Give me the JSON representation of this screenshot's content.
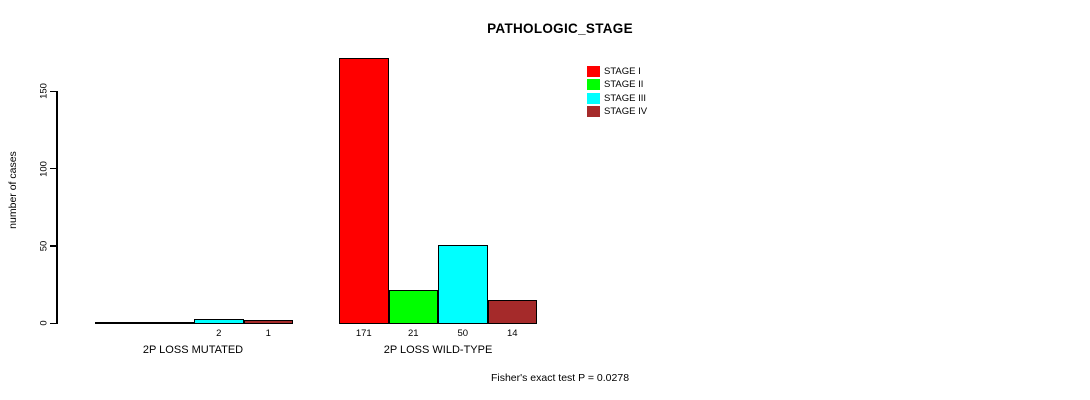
{
  "chart_data": {
    "type": "bar",
    "title": "PATHOLOGIC_STAGE",
    "ylabel": "number of cases",
    "xlabel": "",
    "ylim": [
      0,
      171
    ],
    "yticks": [
      0,
      50,
      100,
      150
    ],
    "grid": false,
    "legend_position": "top-right",
    "categories": [
      "2P LOSS MUTATED",
      "2P LOSS WILD-TYPE"
    ],
    "series": [
      {
        "name": "STAGE I",
        "color": "#ff0000",
        "values": [
          0,
          171
        ]
      },
      {
        "name": "STAGE II",
        "color": "#00ff00",
        "values": [
          0,
          21
        ]
      },
      {
        "name": "STAGE III",
        "color": "#00ffff",
        "values": [
          2,
          50
        ]
      },
      {
        "name": "STAGE IV",
        "color": "#a52a2a",
        "values": [
          1,
          14
        ]
      }
    ],
    "bar_labels": [
      [
        "",
        "",
        "2",
        "1"
      ],
      [
        "171",
        "21",
        "50",
        "14"
      ]
    ],
    "annotation": "Fisher's exact test P = 0.0278",
    "axis_color": "#000000",
    "bar_border_color": "#000000"
  }
}
